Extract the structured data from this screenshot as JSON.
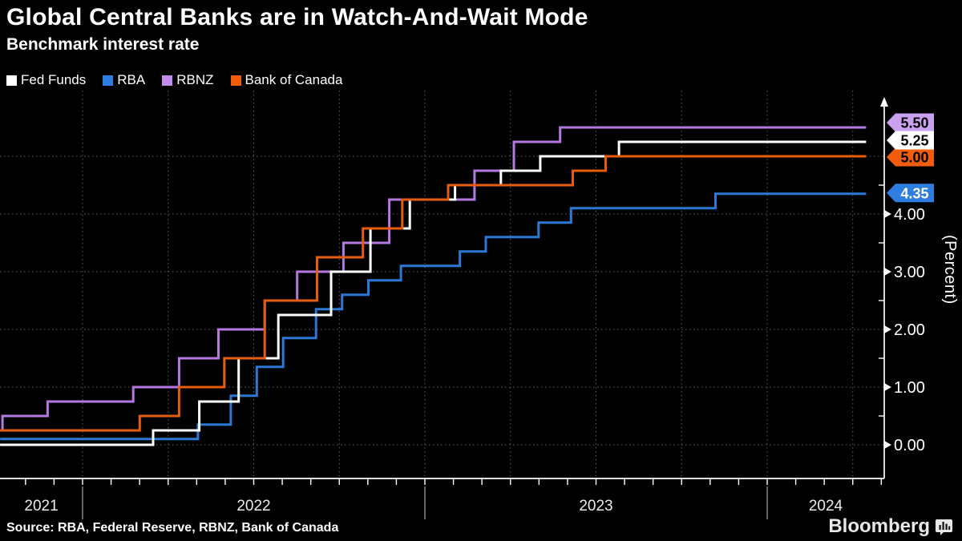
{
  "header": {
    "title": "Global Central Banks are in Watch-And-Wait Mode",
    "subtitle": "Benchmark interest rate"
  },
  "legend": {
    "items": [
      {
        "label": "Fed Funds",
        "color": "#ffffff"
      },
      {
        "label": "RBA",
        "color": "#2e7de0"
      },
      {
        "label": "RBNZ",
        "color": "#c18cec"
      },
      {
        "label": "Bank of Canada",
        "color": "#f25c0a"
      }
    ]
  },
  "chart_data": {
    "type": "line",
    "subtype": "step",
    "title": "Benchmark interest rate",
    "ylabel": "(Percent)",
    "ylim": [
      0,
      6
    ],
    "x_start": 2021.759,
    "x_line_end": 2024.343,
    "series_end": 2024.289,
    "grid": {
      "h_values": [
        0,
        1,
        2,
        3,
        4,
        5
      ],
      "v_quarters": [
        2022.0,
        2022.25,
        2022.5,
        2022.75,
        2023.0,
        2023.25,
        2023.5,
        2023.75,
        2024.0,
        2024.25
      ]
    },
    "y_axis": {
      "ticks": [
        {
          "v": 4,
          "label": "4.00"
        },
        {
          "v": 3,
          "label": "3.00"
        },
        {
          "v": 2,
          "label": "2.00"
        },
        {
          "v": 1,
          "label": "1.00"
        },
        {
          "v": 0,
          "label": "0.00"
        }
      ],
      "minor_ticks": [
        0.5,
        1.5,
        2.5,
        3.5,
        4.5
      ]
    },
    "x_axis": {
      "year_dividers": [
        2022,
        2023,
        2024
      ],
      "year_labels": [
        {
          "label": "2021",
          "span": [
            2021.759,
            2022.0
          ]
        },
        {
          "label": "2022",
          "span": [
            2022.0,
            2023.0
          ]
        },
        {
          "label": "2023",
          "span": [
            2023.0,
            2024.0
          ]
        },
        {
          "label": "2024",
          "span": [
            2024.0,
            2024.343
          ]
        }
      ]
    },
    "series": [
      {
        "name": "RBA",
        "key": "rba",
        "color": "#2a79d6",
        "points": [
          [
            2021.759,
            0.1
          ],
          [
            2022.337,
            0.35
          ],
          [
            2022.433,
            0.85
          ],
          [
            2022.509,
            1.35
          ],
          [
            2022.586,
            1.85
          ],
          [
            2022.682,
            2.35
          ],
          [
            2022.758,
            2.6
          ],
          [
            2022.835,
            2.85
          ],
          [
            2022.93,
            3.1
          ],
          [
            2023.102,
            3.35
          ],
          [
            2023.178,
            3.6
          ],
          [
            2023.332,
            3.85
          ],
          [
            2023.427,
            4.1
          ],
          [
            2023.849,
            4.35
          ]
        ]
      },
      {
        "name": "RBNZ",
        "key": "rbnz",
        "color": "#b478e0",
        "points": [
          [
            2021.759,
            0.25
          ],
          [
            2021.766,
            0.5
          ],
          [
            2021.898,
            0.75
          ],
          [
            2022.148,
            1.0
          ],
          [
            2022.282,
            1.5
          ],
          [
            2022.397,
            2.0
          ],
          [
            2022.532,
            2.5
          ],
          [
            2022.627,
            3.0
          ],
          [
            2022.762,
            3.5
          ],
          [
            2022.896,
            4.25
          ],
          [
            2023.145,
            4.75
          ],
          [
            2023.26,
            5.25
          ],
          [
            2023.395,
            5.5
          ]
        ]
      },
      {
        "name": "Fed Funds",
        "key": "fed-funds",
        "color": "#ffffff",
        "points": [
          [
            2021.759,
            0.0
          ],
          [
            2022.206,
            0.25
          ],
          [
            2022.341,
            0.75
          ],
          [
            2022.456,
            1.5
          ],
          [
            2022.572,
            2.25
          ],
          [
            2022.726,
            3.0
          ],
          [
            2022.841,
            3.75
          ],
          [
            2022.956,
            4.25
          ],
          [
            2023.088,
            4.5
          ],
          [
            2023.222,
            4.75
          ],
          [
            2023.337,
            5.0
          ],
          [
            2023.567,
            5.25
          ]
        ]
      },
      {
        "name": "Bank of Canada",
        "key": "bank-of-canada",
        "color": "#e85d0d",
        "points": [
          [
            2021.759,
            0.25
          ],
          [
            2022.167,
            0.5
          ],
          [
            2022.282,
            1.0
          ],
          [
            2022.414,
            1.5
          ],
          [
            2022.532,
            2.5
          ],
          [
            2022.685,
            3.25
          ],
          [
            2022.819,
            3.75
          ],
          [
            2022.934,
            4.25
          ],
          [
            2023.068,
            4.5
          ],
          [
            2023.432,
            4.75
          ],
          [
            2023.528,
            5.0
          ]
        ]
      }
    ],
    "badges": [
      {
        "key": "rbnz",
        "label": "5.50",
        "v": 5.5,
        "bg": "#c9a1ef",
        "fg": "#000000",
        "nudge": -6
      },
      {
        "key": "bank-of-canada",
        "label": "5.00",
        "v": 5.0,
        "bg": "#f25c0a",
        "fg": "#000000",
        "nudge": 1
      },
      {
        "key": "rba",
        "label": "4.35",
        "v": 4.35,
        "bg": "#2e7de0",
        "fg": "#ffffff",
        "nudge": -1
      },
      {
        "key": "fed-funds",
        "label": "5.25",
        "v": 5.25,
        "bg": "#ffffff",
        "fg": "#000000",
        "nudge": -2
      }
    ]
  },
  "footer": {
    "source": "Source: RBA, Federal Reserve, RBNZ, Bank of Canada",
    "brand": "Bloomberg"
  }
}
